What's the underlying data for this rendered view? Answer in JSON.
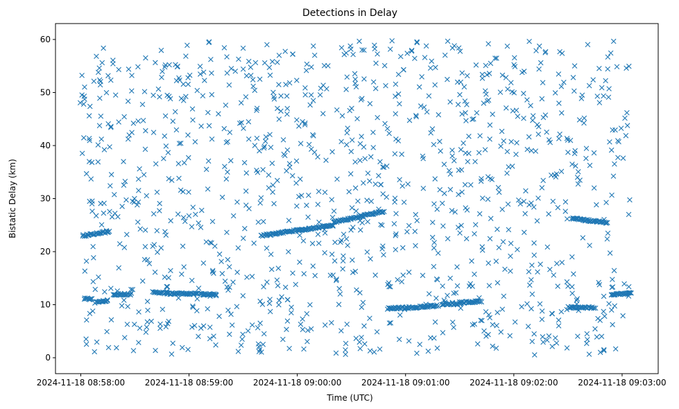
{
  "chart_data": {
    "type": "scatter",
    "title": "Detections in Delay",
    "xlabel": "Time (UTC)",
    "ylabel": "Bistatic Delay (km)",
    "marker": "x",
    "color": "#1f77b4",
    "grid": false,
    "legend": "none",
    "x_unit": "seconds after 2024-11-18 08:58:00 UTC",
    "xlim_labels": [
      "2024-11-18 08:57:46",
      "2024-11-18 09:03:20"
    ],
    "ylim": [
      -3,
      63
    ],
    "xticks": [
      {
        "value": 0,
        "label": "2024-11-18 08:58:00"
      },
      {
        "value": 60,
        "label": "2024-11-18 08:59:00"
      },
      {
        "value": 120,
        "label": "2024-11-18 09:00:00"
      },
      {
        "value": 180,
        "label": "2024-11-18 09:01:00"
      },
      {
        "value": 240,
        "label": "2024-11-18 09:02:00"
      },
      {
        "value": 300,
        "label": "2024-11-18 09:03:00"
      }
    ],
    "yticks": [
      0,
      10,
      20,
      30,
      40,
      50,
      60
    ],
    "tracks": [
      {
        "x": [
          1,
          16
        ],
        "y": [
          23.0,
          23.8
        ]
      },
      {
        "x": [
          2,
          6
        ],
        "y": [
          11.2,
          11.0
        ]
      },
      {
        "x": [
          8,
          15
        ],
        "y": [
          10.4,
          10.8
        ]
      },
      {
        "x": [
          18,
          28
        ],
        "y": [
          11.9,
          12.0
        ]
      },
      {
        "x": [
          40,
          48
        ],
        "y": [
          12.3,
          12.2
        ]
      },
      {
        "x": [
          48,
          65
        ],
        "y": [
          12.1,
          12.0
        ]
      },
      {
        "x": [
          66,
          75
        ],
        "y": [
          12.0,
          11.9
        ]
      },
      {
        "x": [
          100,
          140
        ],
        "y": [
          23.0,
          25.0
        ]
      },
      {
        "x": [
          140,
          168
        ],
        "y": [
          25.5,
          27.6
        ]
      },
      {
        "x": [
          170,
          187
        ],
        "y": [
          9.3,
          9.5
        ]
      },
      {
        "x": [
          188,
          198
        ],
        "y": [
          9.6,
          9.8
        ]
      },
      {
        "x": [
          200,
          210
        ],
        "y": [
          10.0,
          10.2
        ]
      },
      {
        "x": [
          210,
          222
        ],
        "y": [
          10.4,
          10.6
        ]
      },
      {
        "x": [
          272,
          292
        ],
        "y": [
          26.3,
          25.4
        ]
      },
      {
        "x": [
          270,
          285
        ],
        "y": [
          9.5,
          9.4
        ]
      },
      {
        "x": [
          294,
          305
        ],
        "y": [
          11.9,
          12.2
        ]
      }
    ],
    "clutter": {
      "x_range": [
        -1,
        305
      ],
      "y_range": [
        0.5,
        59.8
      ],
      "approx_count": 1150
    }
  }
}
